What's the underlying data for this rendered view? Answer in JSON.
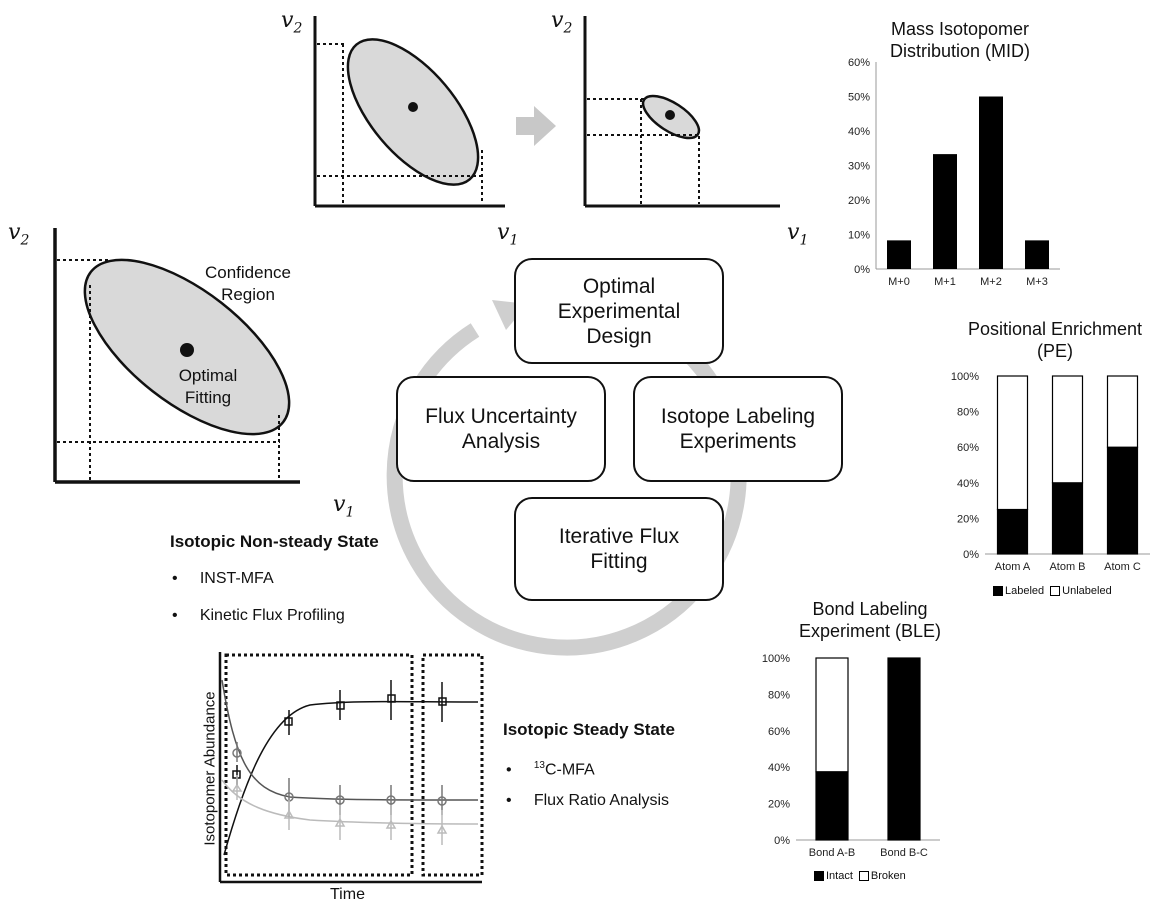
{
  "axis_labels": {
    "v1": "v",
    "v2": "v",
    "sub1": "1",
    "sub2": "2"
  },
  "main_plot": {
    "label_confidence": "Confidence\nRegion",
    "label_fitting": "Optimal\nFitting"
  },
  "cycle": {
    "top": "Optimal\nExperimental\nDesign",
    "left": "Flux Uncertainty\nAnalysis",
    "right": "Isotope Labeling\nExperiments",
    "bottom": "Iterative Flux\nFitting",
    "arrow_color": "#c8c8c8"
  },
  "nonsteady": {
    "heading": "Isotopic Non-steady State",
    "items": [
      "INST-MFA",
      "Kinetic Flux Profiling"
    ]
  },
  "steady": {
    "heading": "Isotopic Steady State",
    "sup": "13",
    "item1_rest": "C-MFA",
    "item2": "Flux Ratio Analysis"
  },
  "time_plot": {
    "ylabel": "Isotopomer Abundance",
    "xlabel": "Time"
  },
  "chart_data": [
    {
      "type": "bar",
      "title": "Mass Isotopomer\nDistribution (MID)",
      "categories": [
        "M+0",
        "M+1",
        "M+2",
        "M+3"
      ],
      "values": [
        0.083,
        0.333,
        0.5,
        0.083
      ],
      "yticks": [
        "0%",
        "10%",
        "20%",
        "30%",
        "40%",
        "50%",
        "60%"
      ],
      "ylim": [
        0,
        0.6
      ]
    },
    {
      "type": "bar",
      "stacked": true,
      "title": "Positional Enrichment\n(PE)",
      "categories": [
        "Atom A",
        "Atom B",
        "Atom C"
      ],
      "series": [
        {
          "name": "Labeled",
          "values": [
            0.25,
            0.4,
            0.6
          ]
        },
        {
          "name": "Unlabeled",
          "values": [
            0.75,
            0.6,
            0.4
          ]
        }
      ],
      "yticks": [
        "0%",
        "20%",
        "40%",
        "60%",
        "80%",
        "100%"
      ],
      "ylim": [
        0,
        1
      ],
      "legend": "bottom"
    },
    {
      "type": "bar",
      "stacked": true,
      "title": "Bond Labeling\nExperiment (BLE)",
      "categories": [
        "Bond A-B",
        "Bond B-C"
      ],
      "series": [
        {
          "name": "Intact",
          "values": [
            0.375,
            1.0
          ]
        },
        {
          "name": "Broken",
          "values": [
            0.625,
            0.0
          ]
        }
      ],
      "yticks": [
        "0%",
        "20%",
        "40%",
        "60%",
        "80%",
        "100%"
      ],
      "ylim": [
        0,
        1
      ],
      "legend": "bottom"
    }
  ]
}
